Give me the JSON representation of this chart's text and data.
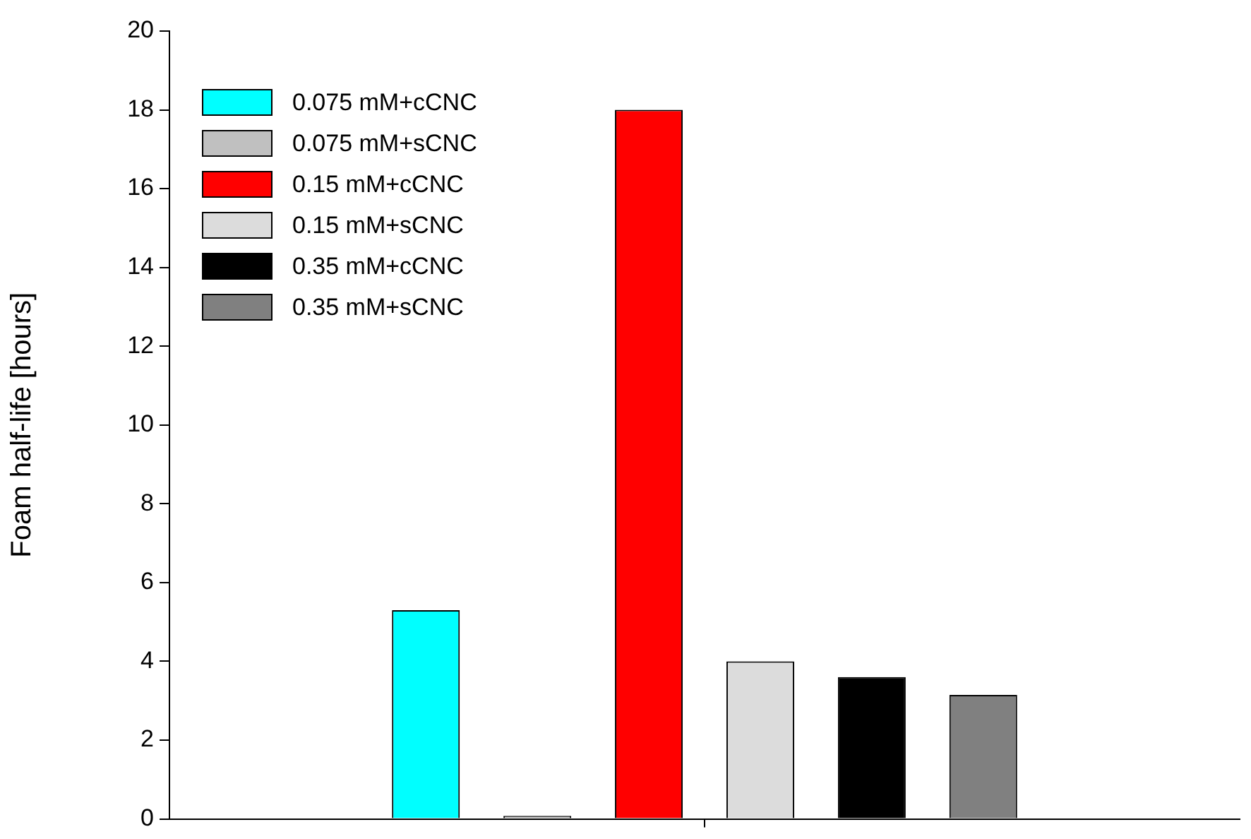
{
  "chart_data": {
    "type": "bar",
    "ylabel": "Foam half-life [hours]",
    "categories": [
      null
    ],
    "series": [
      {
        "name": "0.075 mM+cCNC",
        "color": "#00ffff",
        "values": [
          5.3
        ]
      },
      {
        "name": "0.075 mM+sCNC",
        "color": "#c0c0c0",
        "values": [
          0.08
        ]
      },
      {
        "name": "0.15 mM+cCNC",
        "color": "#ff0000",
        "values": [
          18
        ]
      },
      {
        "name": "0.15 mM+sCNC",
        "color": "#dcdcdc",
        "values": [
          4
        ]
      },
      {
        "name": "0.35 mM+cCNC",
        "color": "#000000",
        "values": [
          3.6
        ]
      },
      {
        "name": "0.35 mM+sCNC",
        "color": "#808080",
        "values": [
          3.15
        ]
      }
    ],
    "ylim": [
      0,
      20
    ],
    "yticks": [
      0,
      2,
      4,
      6,
      8,
      10,
      12,
      14,
      16,
      18,
      20
    ],
    "tick_labels": "y",
    "grid": false,
    "legend": "top left"
  }
}
